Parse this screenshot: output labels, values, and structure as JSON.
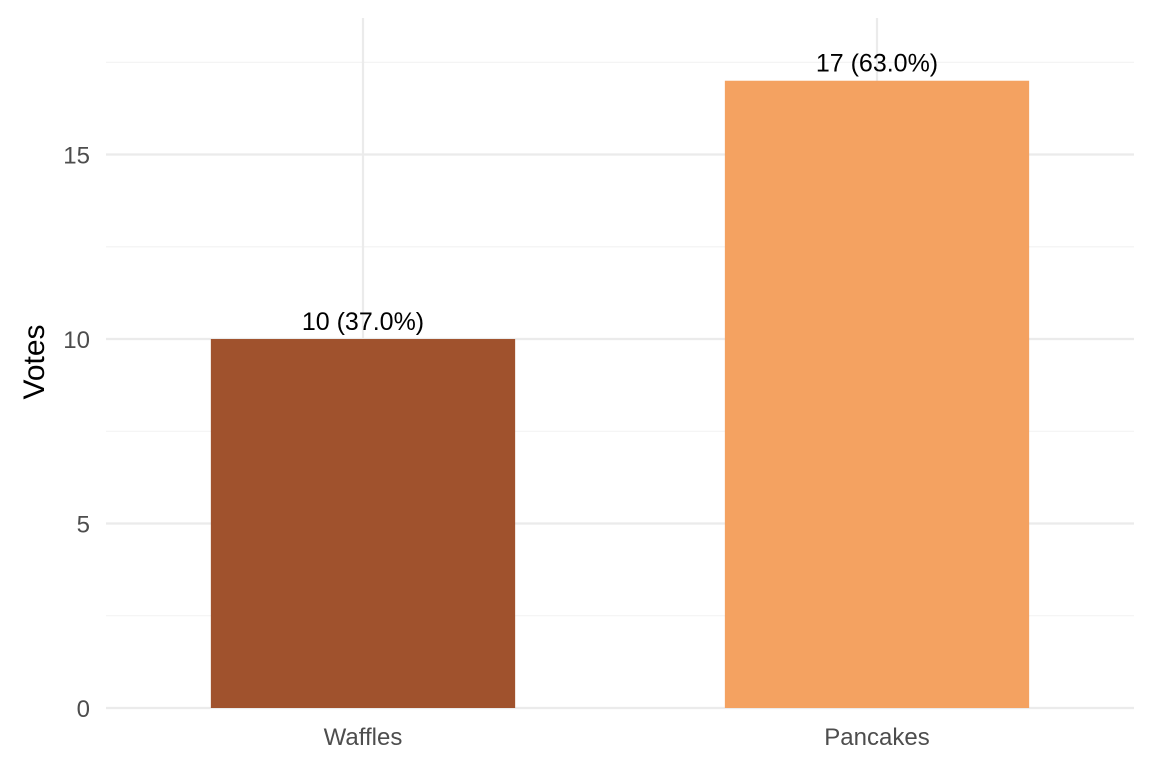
{
  "chart_data": {
    "type": "bar",
    "categories": [
      "Waffles",
      "Pancakes"
    ],
    "values": [
      10,
      17
    ],
    "data_labels": [
      "10 (37.0%)",
      "17 (63.0%)"
    ],
    "colors": [
      "#a0522d",
      "#f4a261"
    ],
    "title": "",
    "xlabel": "",
    "ylabel": "Votes",
    "ylim": [
      0,
      18.7
    ],
    "y_ticks": [
      0,
      5,
      10,
      15
    ],
    "y_tick_labels": [
      "0",
      "5",
      "10",
      "15"
    ],
    "y_minor_ticks": [
      2.5,
      7.5,
      12.5,
      17.5
    ],
    "grid": true,
    "legend": "none"
  }
}
